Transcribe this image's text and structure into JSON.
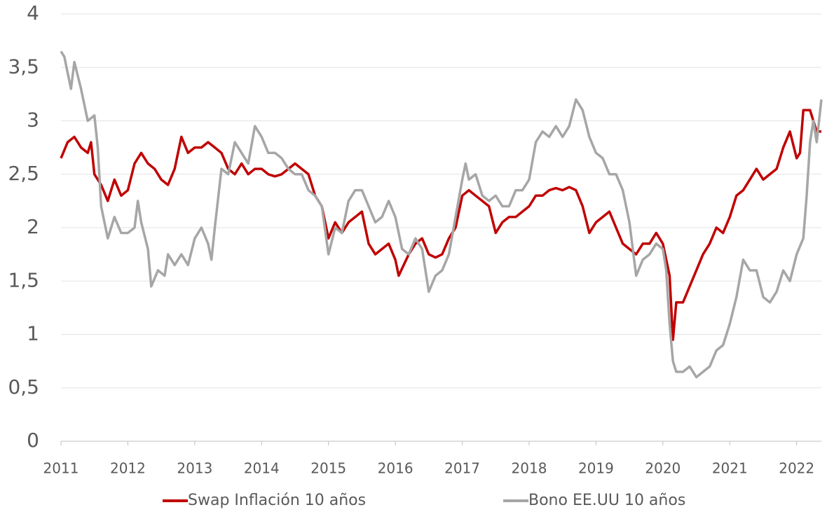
{
  "chart_data": {
    "type": "line",
    "xlim": [
      2011,
      2022.37
    ],
    "xticks": [
      2011,
      2012,
      2013,
      2014,
      2015,
      2016,
      2017,
      2018,
      2019,
      2020,
      2021,
      2022
    ],
    "ylim": [
      0,
      4
    ],
    "yticks": [
      0,
      {
        "value": 0.5,
        "label": "0,5"
      },
      1,
      {
        "value": 1.5,
        "label": "1,5"
      },
      2,
      {
        "value": 2.5,
        "label": "2,5"
      },
      3,
      {
        "value": 3.5,
        "label": "3,5"
      },
      4
    ],
    "grid": true,
    "legend": "bottom",
    "series": [
      {
        "name": "Swap Inflación 10 años",
        "color": "#c00000",
        "x": [
          2011.0,
          2011.1,
          2011.2,
          2011.3,
          2011.4,
          2011.45,
          2011.5,
          2011.6,
          2011.7,
          2011.8,
          2011.9,
          2012.0,
          2012.1,
          2012.2,
          2012.3,
          2012.4,
          2012.5,
          2012.6,
          2012.7,
          2012.8,
          2012.9,
          2013.0,
          2013.1,
          2013.2,
          2013.3,
          2013.4,
          2013.5,
          2013.6,
          2013.7,
          2013.8,
          2013.9,
          2014.0,
          2014.1,
          2014.2,
          2014.3,
          2014.4,
          2014.5,
          2014.6,
          2014.7,
          2014.8,
          2014.9,
          2015.0,
          2015.1,
          2015.2,
          2015.3,
          2015.4,
          2015.5,
          2015.6,
          2015.7,
          2015.8,
          2015.9,
          2016.0,
          2016.05,
          2016.2,
          2016.3,
          2016.4,
          2016.5,
          2016.6,
          2016.7,
          2016.8,
          2016.9,
          2017.0,
          2017.1,
          2017.2,
          2017.3,
          2017.4,
          2017.5,
          2017.6,
          2017.7,
          2017.8,
          2017.9,
          2018.0,
          2018.1,
          2018.2,
          2018.3,
          2018.4,
          2018.5,
          2018.6,
          2018.7,
          2018.8,
          2018.9,
          2019.0,
          2019.1,
          2019.2,
          2019.3,
          2019.4,
          2019.5,
          2019.6,
          2019.7,
          2019.8,
          2019.9,
          2020.0,
          2020.1,
          2020.15,
          2020.2,
          2020.3,
          2020.4,
          2020.5,
          2020.6,
          2020.7,
          2020.8,
          2020.9,
          2021.0,
          2021.1,
          2021.2,
          2021.3,
          2021.4,
          2021.5,
          2021.6,
          2021.7,
          2021.8,
          2021.9,
          2022.0,
          2022.05,
          2022.1,
          2022.2,
          2022.3,
          2022.37
        ],
        "values": [
          2.65,
          2.8,
          2.85,
          2.75,
          2.7,
          2.8,
          2.5,
          2.4,
          2.25,
          2.45,
          2.3,
          2.35,
          2.6,
          2.7,
          2.6,
          2.55,
          2.45,
          2.4,
          2.55,
          2.85,
          2.7,
          2.75,
          2.75,
          2.8,
          2.75,
          2.7,
          2.55,
          2.5,
          2.6,
          2.5,
          2.55,
          2.55,
          2.5,
          2.48,
          2.5,
          2.55,
          2.6,
          2.55,
          2.5,
          2.3,
          2.2,
          1.9,
          2.05,
          1.95,
          2.05,
          2.1,
          2.15,
          1.85,
          1.75,
          1.8,
          1.85,
          1.7,
          1.55,
          1.75,
          1.85,
          1.9,
          1.75,
          1.72,
          1.75,
          1.9,
          2.0,
          2.3,
          2.35,
          2.3,
          2.25,
          2.2,
          1.95,
          2.05,
          2.1,
          2.1,
          2.15,
          2.2,
          2.3,
          2.3,
          2.35,
          2.37,
          2.35,
          2.38,
          2.35,
          2.2,
          1.95,
          2.05,
          2.1,
          2.15,
          2.0,
          1.85,
          1.8,
          1.75,
          1.85,
          1.85,
          1.95,
          1.85,
          1.55,
          0.95,
          1.3,
          1.3,
          1.45,
          1.6,
          1.75,
          1.85,
          2.0,
          1.95,
          2.1,
          2.3,
          2.35,
          2.45,
          2.55,
          2.45,
          2.5,
          2.55,
          2.75,
          2.9,
          2.65,
          2.7,
          3.1,
          3.1,
          2.9,
          2.9
        ]
      },
      {
        "name": "Bono EE.UU 10 años",
        "color": "#a6a6a6",
        "x": [
          2011.0,
          2011.05,
          2011.1,
          2011.15,
          2011.2,
          2011.3,
          2011.4,
          2011.5,
          2011.55,
          2011.6,
          2011.7,
          2011.8,
          2011.9,
          2012.0,
          2012.1,
          2012.15,
          2012.2,
          2012.3,
          2012.35,
          2012.45,
          2012.55,
          2012.6,
          2012.7,
          2012.8,
          2012.9,
          2013.0,
          2013.1,
          2013.2,
          2013.25,
          2013.3,
          2013.4,
          2013.5,
          2013.6,
          2013.7,
          2013.8,
          2013.9,
          2014.0,
          2014.1,
          2014.2,
          2014.3,
          2014.4,
          2014.5,
          2014.6,
          2014.7,
          2014.8,
          2014.9,
          2015.0,
          2015.1,
          2015.2,
          2015.3,
          2015.4,
          2015.5,
          2015.6,
          2015.7,
          2015.8,
          2015.9,
          2016.0,
          2016.1,
          2016.2,
          2016.3,
          2016.4,
          2016.5,
          2016.6,
          2016.7,
          2016.8,
          2016.9,
          2017.0,
          2017.05,
          2017.1,
          2017.2,
          2017.3,
          2017.4,
          2017.5,
          2017.6,
          2017.7,
          2017.8,
          2017.9,
          2018.0,
          2018.1,
          2018.2,
          2018.3,
          2018.4,
          2018.5,
          2018.6,
          2018.7,
          2018.8,
          2018.9,
          2019.0,
          2019.1,
          2019.2,
          2019.3,
          2019.4,
          2019.5,
          2019.6,
          2019.7,
          2019.8,
          2019.9,
          2020.0,
          2020.05,
          2020.1,
          2020.15,
          2020.2,
          2020.3,
          2020.4,
          2020.5,
          2020.6,
          2020.7,
          2020.8,
          2020.9,
          2021.0,
          2021.1,
          2021.2,
          2021.3,
          2021.4,
          2021.5,
          2021.6,
          2021.7,
          2021.8,
          2021.9,
          2022.0,
          2022.1,
          2022.15,
          2022.2,
          2022.25,
          2022.3,
          2022.37
        ],
        "values": [
          3.65,
          3.6,
          3.45,
          3.3,
          3.55,
          3.3,
          3.0,
          3.05,
          2.75,
          2.2,
          1.9,
          2.1,
          1.95,
          1.95,
          2.0,
          2.25,
          2.05,
          1.8,
          1.45,
          1.6,
          1.55,
          1.75,
          1.65,
          1.75,
          1.65,
          1.9,
          2.0,
          1.85,
          1.7,
          2.0,
          2.55,
          2.5,
          2.8,
          2.7,
          2.6,
          2.95,
          2.85,
          2.7,
          2.7,
          2.65,
          2.55,
          2.5,
          2.5,
          2.35,
          2.3,
          2.2,
          1.75,
          2.0,
          1.95,
          2.25,
          2.35,
          2.35,
          2.2,
          2.05,
          2.1,
          2.25,
          2.1,
          1.8,
          1.75,
          1.9,
          1.8,
          1.4,
          1.55,
          1.6,
          1.75,
          2.1,
          2.45,
          2.6,
          2.45,
          2.5,
          2.3,
          2.25,
          2.3,
          2.2,
          2.2,
          2.35,
          2.35,
          2.45,
          2.8,
          2.9,
          2.85,
          2.95,
          2.85,
          2.95,
          3.2,
          3.1,
          2.85,
          2.7,
          2.65,
          2.5,
          2.5,
          2.35,
          2.05,
          1.55,
          1.7,
          1.75,
          1.85,
          1.8,
          1.6,
          1.1,
          0.75,
          0.65,
          0.65,
          0.7,
          0.6,
          0.65,
          0.7,
          0.85,
          0.9,
          1.1,
          1.35,
          1.7,
          1.6,
          1.6,
          1.35,
          1.3,
          1.4,
          1.6,
          1.5,
          1.75,
          1.9,
          2.3,
          2.8,
          3.0,
          2.8,
          3.2
        ]
      }
    ]
  }
}
